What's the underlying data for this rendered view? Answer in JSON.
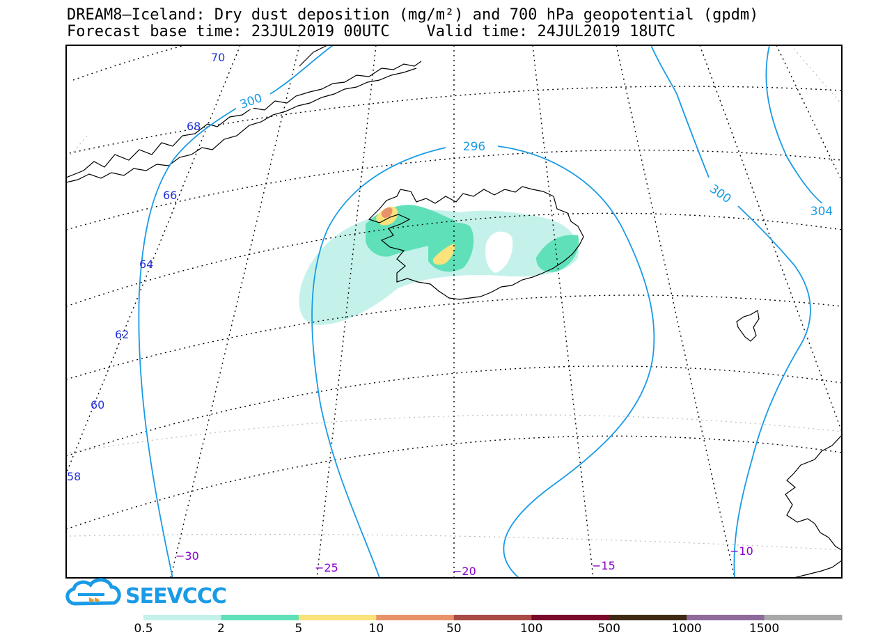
{
  "header": {
    "title_line1": "DREAM8—Iceland: Dry dust deposition (mg/m²) and 700 hPa geopotential (gpdm)",
    "title_line2": "Forecast base time: 23JUL2019 00UTC    Valid time: 24JUL2019 18UTC"
  },
  "map": {
    "latitude_labels": [
      "70",
      "68",
      "66",
      "64",
      "62",
      "60",
      "58"
    ],
    "longitude_labels": [
      "−30",
      "−25",
      "−20",
      "−15",
      "−10"
    ],
    "contour_labels": [
      "300",
      "296",
      "300",
      "304"
    ],
    "colors": {
      "graticule": "#000000",
      "contour": "#1a9be6",
      "coastline": "#000000"
    }
  },
  "legend": {
    "labels": [
      "0.5",
      "2",
      "5",
      "10",
      "50",
      "100",
      "500",
      "1000",
      "1500"
    ],
    "colors": [
      "#c4f2ea",
      "#5fe0b8",
      "#fbe27a",
      "#e8926c",
      "#aa4a44",
      "#7a0a2a",
      "#3e2a14",
      "#8e6a9a",
      "#a8a8a8"
    ]
  },
  "logo": {
    "text": "SEEVCCC",
    "icon": "cloud-logo-icon"
  }
}
